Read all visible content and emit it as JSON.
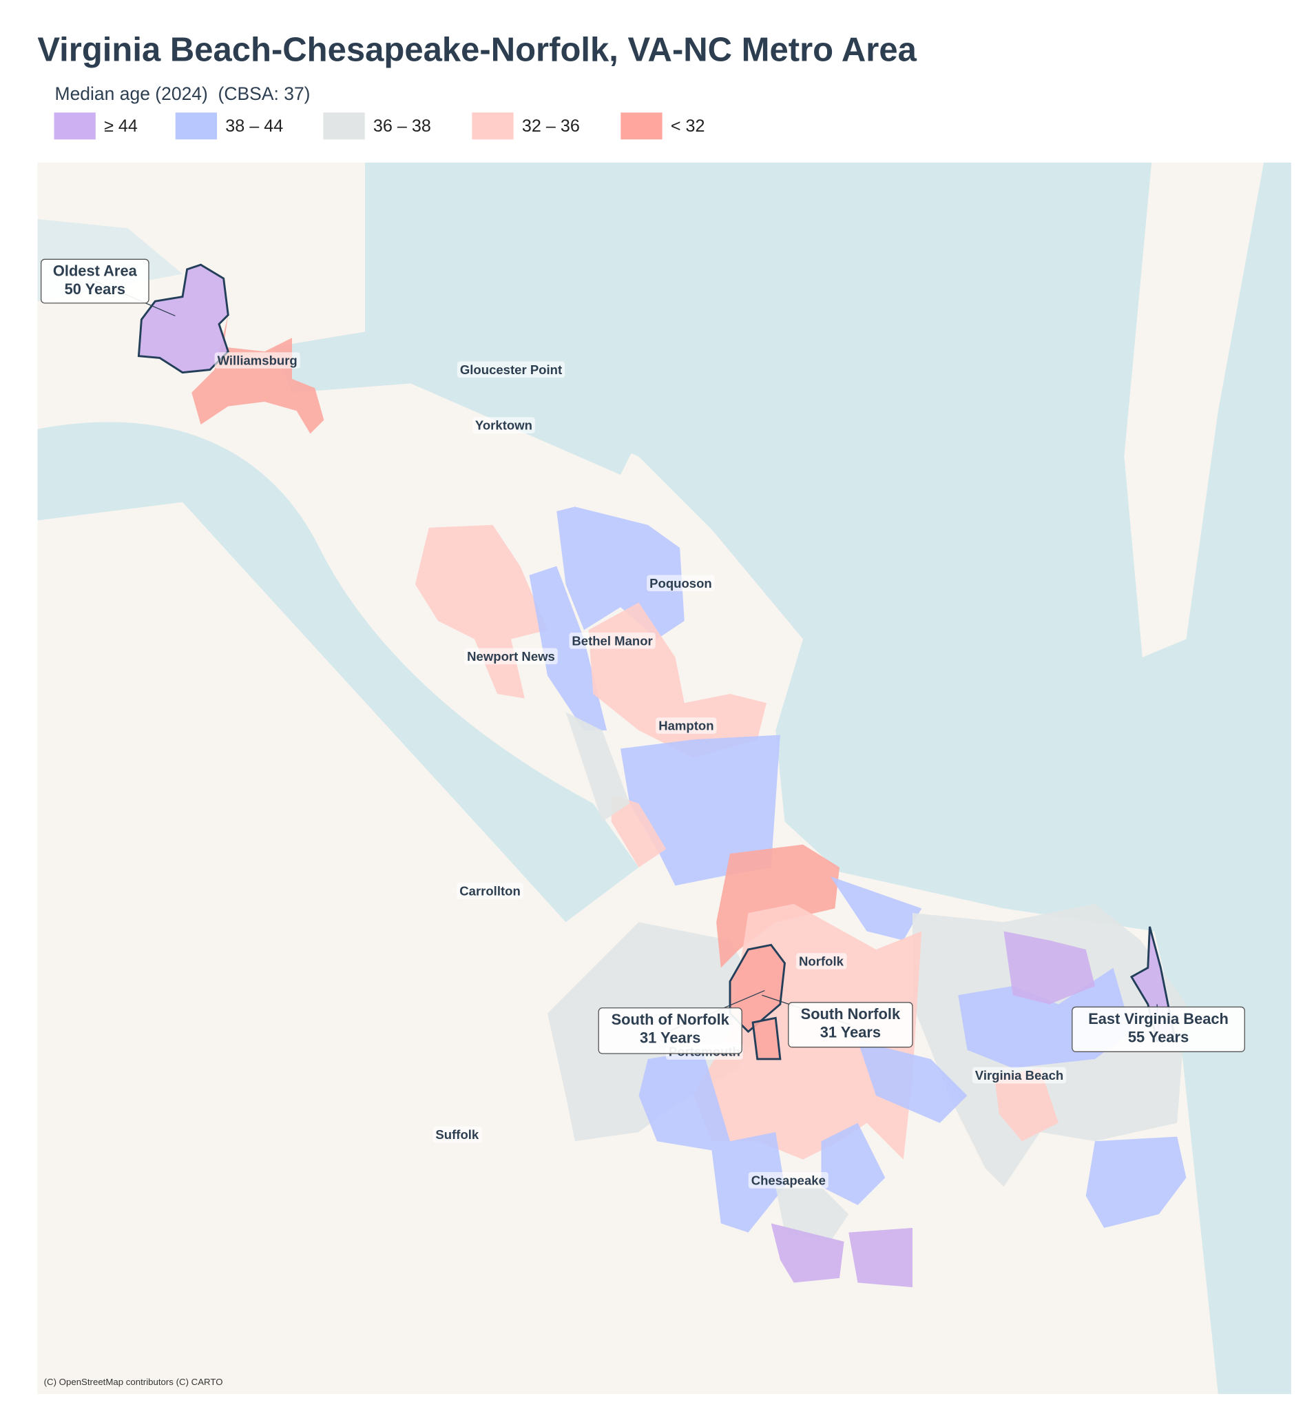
{
  "header": {
    "title": "Virginia Beach-Chesapeake-Norfolk, VA-NC Metro Area",
    "subtitle": "Median age (2024)  (CBSA: 37)"
  },
  "legend": [
    {
      "label": "≥ 44",
      "color": "#c6b4dd"
    },
    {
      "label": "38 – 44",
      "color": "#bfc8f6"
    },
    {
      "label": "36 – 38",
      "color": "#e2e5e5"
    },
    {
      "label": "32 – 36",
      "color": "#fbd3cf"
    },
    {
      "label": "< 32",
      "color": "#e6aea8"
    }
  ],
  "places": [
    "Williamsburg",
    "Gloucester Point",
    "Yorktown",
    "Poquoson",
    "Bethel Manor",
    "Newport News",
    "Hampton",
    "Carrollton",
    "Norfolk",
    "Portsmouth",
    "Virginia Beach",
    "Suffolk",
    "Chesapeake"
  ],
  "callouts": [
    {
      "lines": [
        "Oldest Area",
        "50 Years"
      ]
    },
    {
      "lines": [
        "South of Norfolk",
        "31 Years"
      ]
    },
    {
      "lines": [
        "South Norfolk",
        "31 Years"
      ]
    },
    {
      "lines": [
        "East Virginia Beach",
        "55 Years"
      ]
    }
  ],
  "attribution": "(C) OpenStreetMap contributors (C) CARTO"
}
